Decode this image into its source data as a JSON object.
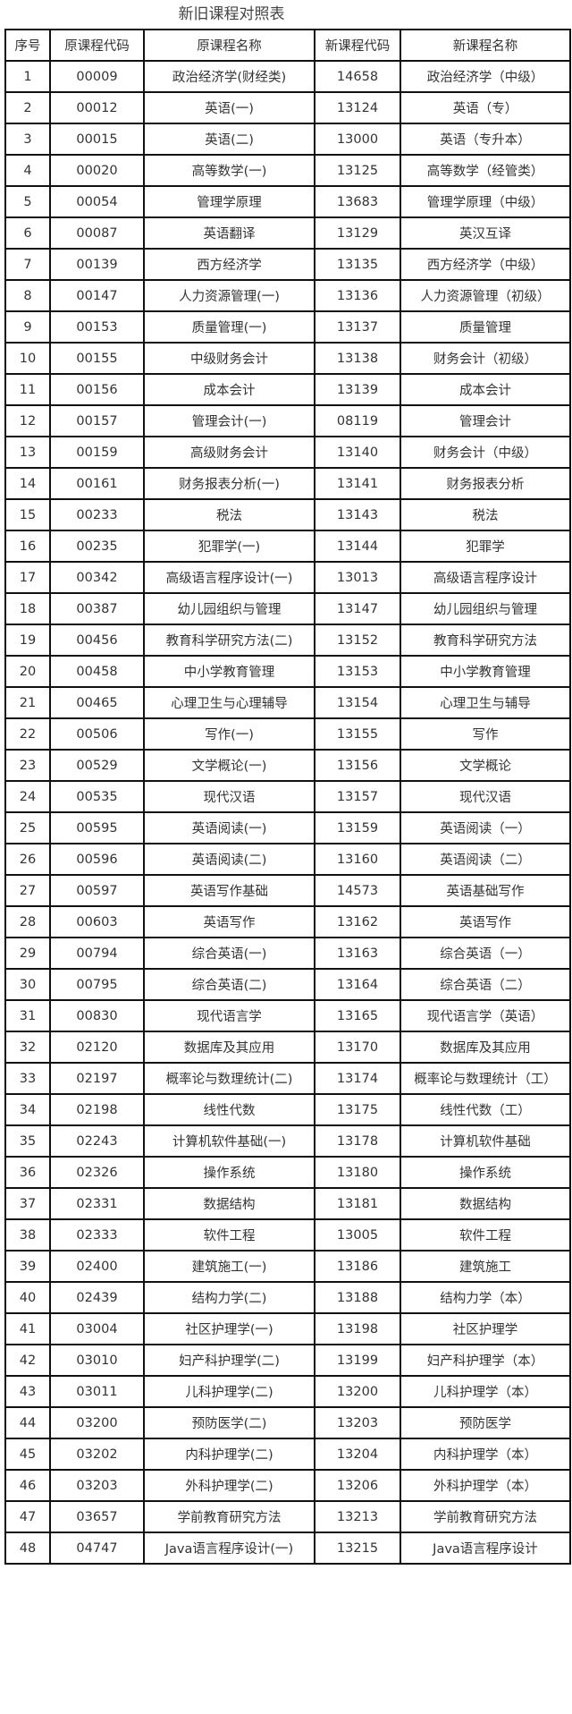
{
  "title": "新旧课程对照表",
  "headers": [
    "序号",
    "原课程代码",
    "原课程名称",
    "新课程代码",
    "新课程名称"
  ],
  "rows": [
    [
      "1",
      "00009",
      "政治经济学(财经类)",
      "14658",
      "政治经济学（中级）"
    ],
    [
      "2",
      "00012",
      "英语(一)",
      "13124",
      "英语（专）"
    ],
    [
      "3",
      "00015",
      "英语(二)",
      "13000",
      "英语（专升本）"
    ],
    [
      "4",
      "00020",
      "高等数学(一)",
      "13125",
      "高等数学（经管类）"
    ],
    [
      "5",
      "00054",
      "管理学原理",
      "13683",
      "管理学原理（中级）"
    ],
    [
      "6",
      "00087",
      "英语翻译",
      "13129",
      "英汉互译"
    ],
    [
      "7",
      "00139",
      "西方经济学",
      "13135",
      "西方经济学（中级）"
    ],
    [
      "8",
      "00147",
      "人力资源管理(一)",
      "13136",
      "人力资源管理（初级）"
    ],
    [
      "9",
      "00153",
      "质量管理(一)",
      "13137",
      "质量管理"
    ],
    [
      "10",
      "00155",
      "中级财务会计",
      "13138",
      "财务会计（初级）"
    ],
    [
      "11",
      "00156",
      "成本会计",
      "13139",
      "成本会计"
    ],
    [
      "12",
      "00157",
      "管理会计(一)",
      "08119",
      "管理会计"
    ],
    [
      "13",
      "00159",
      "高级财务会计",
      "13140",
      "财务会计（中级）"
    ],
    [
      "14",
      "00161",
      "财务报表分析(一)",
      "13141",
      "财务报表分析"
    ],
    [
      "15",
      "00233",
      "税法",
      "13143",
      "税法"
    ],
    [
      "16",
      "00235",
      "犯罪学(一)",
      "13144",
      "犯罪学"
    ],
    [
      "17",
      "00342",
      "高级语言程序设计(一)",
      "13013",
      "高级语言程序设计"
    ],
    [
      "18",
      "00387",
      "幼儿园组织与管理",
      "13147",
      "幼儿园组织与管理"
    ],
    [
      "19",
      "00456",
      "教育科学研究方法(二)",
      "13152",
      "教育科学研究方法"
    ],
    [
      "20",
      "00458",
      "中小学教育管理",
      "13153",
      "中小学教育管理"
    ],
    [
      "21",
      "00465",
      "心理卫生与心理辅导",
      "13154",
      "心理卫生与辅导"
    ],
    [
      "22",
      "00506",
      "写作(一)",
      "13155",
      "写作"
    ],
    [
      "23",
      "00529",
      "文学概论(一)",
      "13156",
      "文学概论"
    ],
    [
      "24",
      "00535",
      "现代汉语",
      "13157",
      "现代汉语"
    ],
    [
      "25",
      "00595",
      "英语阅读(一)",
      "13159",
      "英语阅读（一）"
    ],
    [
      "26",
      "00596",
      "英语阅读(二)",
      "13160",
      "英语阅读（二）"
    ],
    [
      "27",
      "00597",
      "英语写作基础",
      "14573",
      "英语基础写作"
    ],
    [
      "28",
      "00603",
      "英语写作",
      "13162",
      "英语写作"
    ],
    [
      "29",
      "00794",
      "综合英语(一)",
      "13163",
      "综合英语（一）"
    ],
    [
      "30",
      "00795",
      "综合英语(二)",
      "13164",
      "综合英语（二）"
    ],
    [
      "31",
      "00830",
      "现代语言学",
      "13165",
      "现代语言学（英语）"
    ],
    [
      "32",
      "02120",
      "数据库及其应用",
      "13170",
      "数据库及其应用"
    ],
    [
      "33",
      "02197",
      "概率论与数理统计(二)",
      "13174",
      "概率论与数理统计（工）"
    ],
    [
      "34",
      "02198",
      "线性代数",
      "13175",
      "线性代数（工）"
    ],
    [
      "35",
      "02243",
      "计算机软件基础(一)",
      "13178",
      "计算机软件基础"
    ],
    [
      "36",
      "02326",
      "操作系统",
      "13180",
      "操作系统"
    ],
    [
      "37",
      "02331",
      "数据结构",
      "13181",
      "数据结构"
    ],
    [
      "38",
      "02333",
      "软件工程",
      "13005",
      "软件工程"
    ],
    [
      "39",
      "02400",
      "建筑施工(一)",
      "13186",
      "建筑施工"
    ],
    [
      "40",
      "02439",
      "结构力学(二)",
      "13188",
      "结构力学（本）"
    ],
    [
      "41",
      "03004",
      "社区护理学(一)",
      "13198",
      "社区护理学"
    ],
    [
      "42",
      "03010",
      "妇产科护理学(二)",
      "13199",
      "妇产科护理学（本）"
    ],
    [
      "43",
      "03011",
      "儿科护理学(二)",
      "13200",
      "儿科护理学（本）"
    ],
    [
      "44",
      "03200",
      "预防医学(二)",
      "13203",
      "预防医学"
    ],
    [
      "45",
      "03202",
      "内科护理学(二)",
      "13204",
      "内科护理学（本）"
    ],
    [
      "46",
      "03203",
      "外科护理学(二)",
      "13206",
      "外科护理学（本）"
    ],
    [
      "47",
      "03657",
      "学前教育研究方法",
      "13213",
      "学前教育研究方法"
    ],
    [
      "48",
      "04747",
      "Java语言程序设计(一)",
      "13215",
      "Java语言程序设计"
    ]
  ]
}
